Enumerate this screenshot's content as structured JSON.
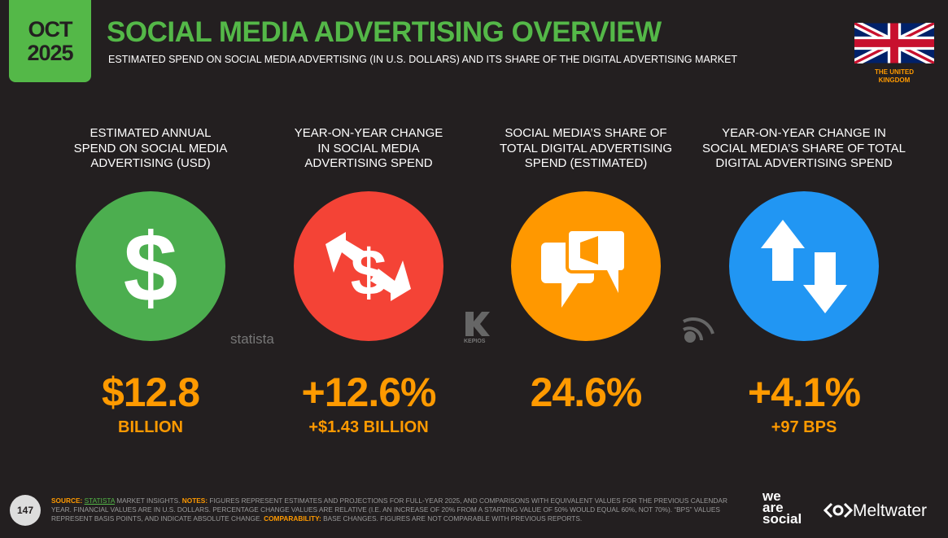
{
  "header": {
    "month": "OCT",
    "year": "2025",
    "title": "SOCIAL MEDIA ADVERTISING OVERVIEW",
    "subtitle": "ESTIMATED SPEND ON SOCIAL MEDIA ADVERTISING (IN U.S. DOLLARS) AND ITS SHARE OF THE DIGITAL ADVERTISING MARKET",
    "country": [
      "THE UNITED",
      "KINGDOM"
    ]
  },
  "stats": [
    {
      "heading": [
        "ESTIMATED ANNUAL",
        "SPEND ON SOCIAL MEDIA",
        "ADVERTISING (USD)"
      ],
      "value": "$12.8",
      "sublabel": "BILLION"
    },
    {
      "heading": [
        "YEAR-ON-YEAR CHANGE",
        "IN SOCIAL MEDIA",
        "ADVERTISING SPEND"
      ],
      "value": "+12.6%",
      "sublabel": "+$1.43 BILLION"
    },
    {
      "heading": [
        "SOCIAL MEDIA’S SHARE OF",
        "TOTAL DIGITAL ADVERTISING",
        "SPEND (ESTIMATED)"
      ],
      "value": "24.6%",
      "sublabel": null
    },
    {
      "heading": [
        "YEAR-ON-YEAR CHANGE IN",
        "SOCIAL MEDIA’S SHARE OF TOTAL",
        "DIGITAL ADVERTISING SPEND"
      ],
      "value": "+4.1%",
      "sublabel": "+97 BPS"
    }
  ],
  "sources": {
    "statista": "statista",
    "kepios": "KEPIOS"
  },
  "footer": {
    "page": "147",
    "source_label": "SOURCE:",
    "source_name": "STATISTA",
    "source_rest": " MARKET INSIGHTS. ",
    "notes_label": "NOTES:",
    "notes_text": " FIGURES REPRESENT ESTIMATES AND PROJECTIONS FOR FULL-YEAR 2025, AND COMPARISONS WITH EQUIVALENT VALUES FOR THE PREVIOUS CALENDAR YEAR. FINANCIAL VALUES ARE IN U.S. DOLLARS. PERCENTAGE CHANGE VALUES ARE RELATIVE (I.E. AN INCREASE OF 20% FROM A STARTING VALUE OF 50% WOULD EQUAL 60%, NOT 70%). “BPS” VALUES REPRESENT BASIS POINTS, AND INDICATE ABSOLUTE CHANGE. ",
    "comparability_label": "COMPARABILITY:",
    "comparability_text": " BASE CHANGES. FIGURES ARE NOT COMPARABLE WITH PREVIOUS REPORTS."
  },
  "brands": {
    "wearesocial": [
      "we",
      "are",
      "social"
    ],
    "meltwater": "Meltwater"
  }
}
